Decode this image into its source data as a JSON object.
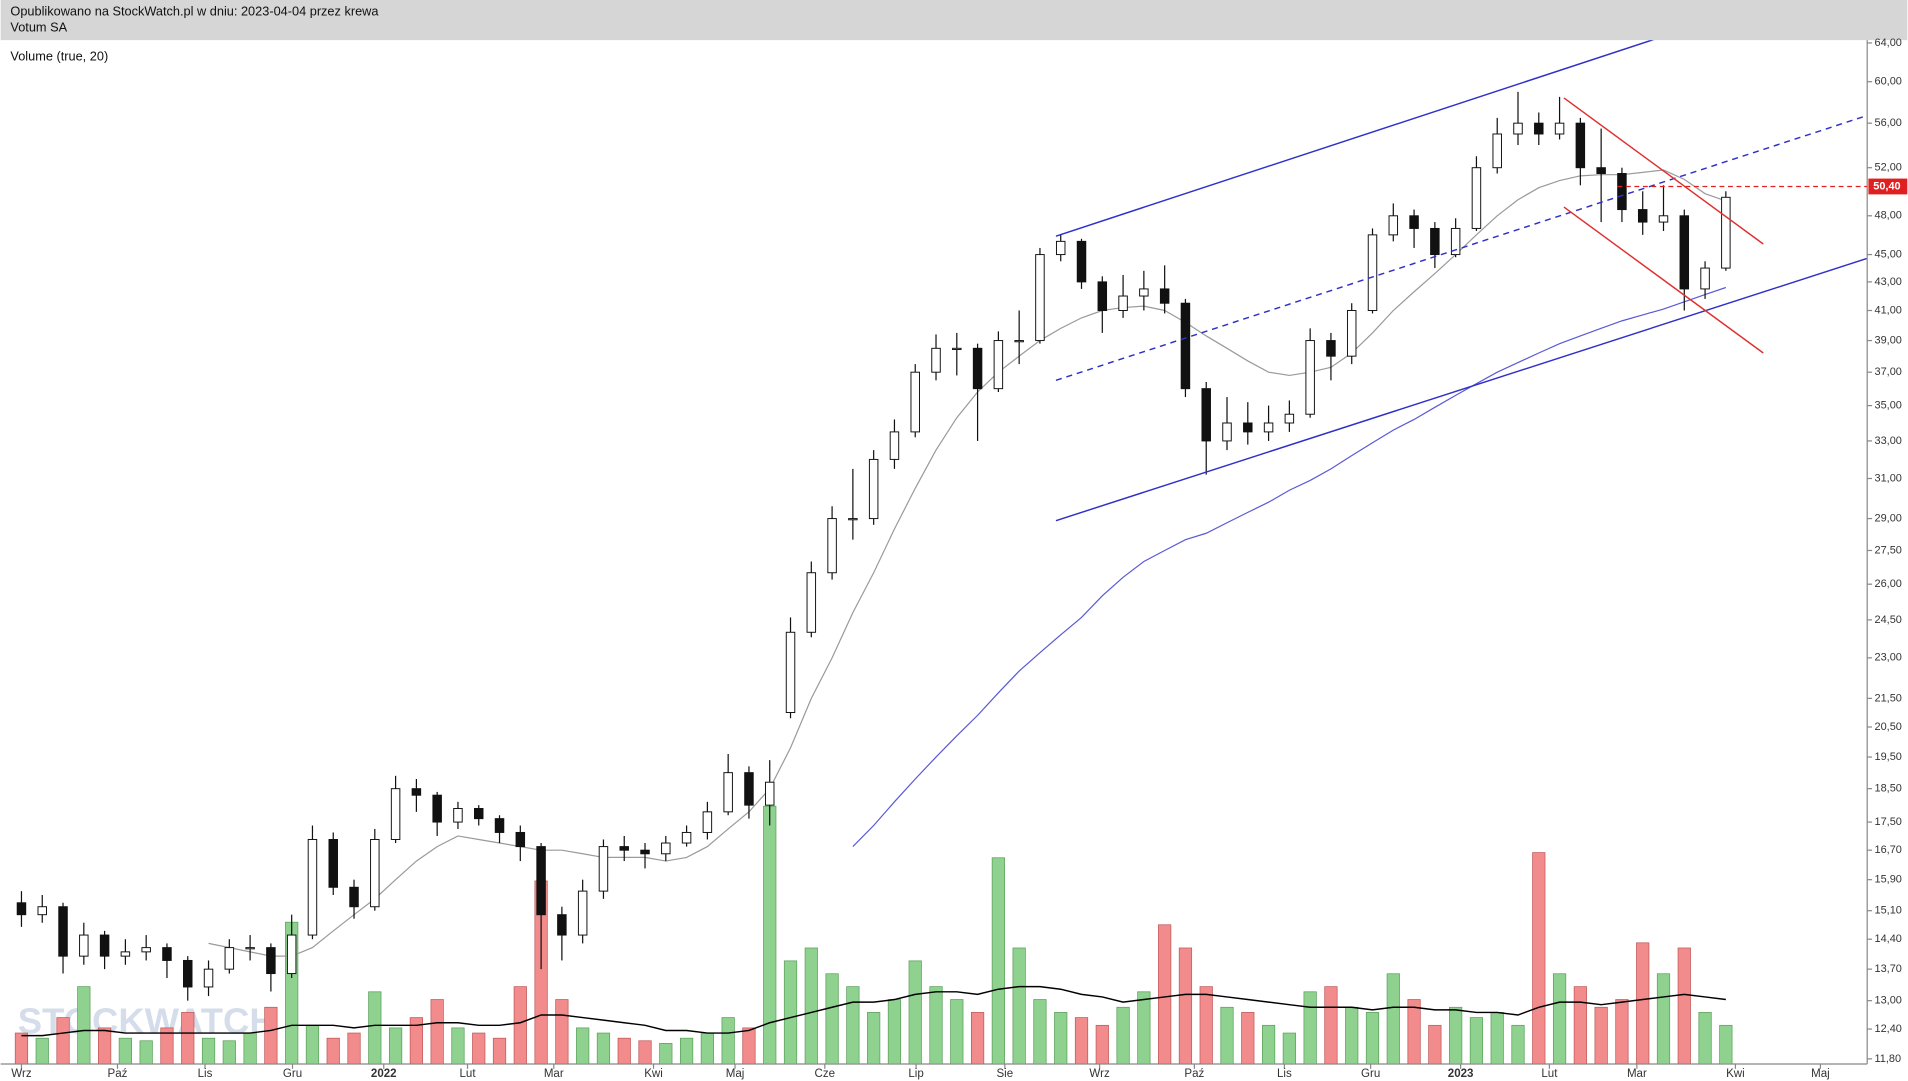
{
  "header": {
    "published": "Opublikowano na StockWatch.pl w dniu: 2023-04-04 przez krewa",
    "instrument": "Votum SA"
  },
  "chart_data": {
    "type": "candlestick",
    "volume_label": "Volume (true, 20)",
    "watermark": "STOCKWATCH",
    "x": [
      0,
      1,
      2,
      3,
      4,
      5,
      6,
      7,
      8,
      9,
      10,
      11,
      12,
      13,
      14,
      15,
      16,
      17,
      18,
      19,
      20,
      21,
      22,
      23,
      24,
      25,
      26,
      27,
      28,
      29,
      30,
      31,
      32,
      33,
      34,
      35,
      36,
      37,
      38,
      39,
      40,
      41,
      42,
      43,
      44,
      45,
      46,
      47,
      48,
      49,
      50,
      51,
      52,
      53,
      54,
      55,
      56,
      57,
      58,
      59,
      60,
      61,
      62,
      63,
      64,
      65,
      66,
      67,
      68,
      69,
      70,
      71,
      72,
      73,
      74,
      75,
      76,
      77,
      78,
      79,
      80,
      81,
      82
    ],
    "open": [
      15.3,
      15.0,
      15.2,
      14.0,
      14.5,
      14.0,
      14.1,
      14.2,
      13.9,
      13.3,
      13.7,
      14.2,
      14.2,
      13.6,
      14.5,
      17.0,
      15.7,
      15.2,
      17.0,
      18.5,
      18.3,
      17.5,
      17.9,
      17.6,
      17.2,
      16.8,
      15.0,
      14.5,
      15.6,
      16.8,
      16.7,
      16.6,
      16.9,
      17.2,
      17.8,
      19.0,
      18.0,
      21.0,
      24.0,
      26.5,
      29.0,
      29.0,
      32.0,
      33.5,
      37.0,
      38.5,
      38.5,
      36.0,
      39.0,
      39.0,
      45.0,
      46.0,
      43.0,
      41.0,
      42.0,
      42.5,
      41.5,
      36.0,
      33.0,
      34.0,
      33.5,
      34.0,
      34.5,
      39.0,
      38.0,
      41.0,
      46.5,
      48.0,
      47.0,
      45.0,
      47.0,
      52.0,
      55.0,
      56.0,
      55.0,
      56.0,
      52.0,
      51.5,
      48.5,
      47.5,
      48.0,
      42.5,
      44.0
    ],
    "high": [
      15.6,
      15.5,
      15.3,
      14.8,
      14.6,
      14.4,
      14.5,
      14.3,
      14.0,
      13.9,
      14.4,
      14.5,
      14.3,
      15.0,
      17.4,
      17.2,
      15.9,
      17.3,
      18.9,
      18.8,
      18.4,
      18.1,
      18.0,
      17.7,
      17.4,
      16.9,
      15.2,
      15.9,
      17.0,
      17.1,
      16.9,
      17.1,
      17.4,
      18.1,
      19.6,
      19.2,
      19.4,
      24.6,
      27.0,
      29.6,
      31.5,
      32.5,
      34.2,
      37.5,
      39.4,
      39.5,
      38.8,
      39.6,
      41.0,
      45.5,
      46.5,
      46.2,
      43.4,
      43.5,
      43.8,
      44.2,
      41.8,
      36.4,
      35.5,
      35.2,
      35.0,
      35.3,
      39.8,
      39.5,
      41.5,
      47.0,
      49.0,
      48.5,
      47.5,
      47.8,
      53.0,
      56.5,
      59.0,
      57.0,
      58.5,
      56.5,
      55.5,
      52.0,
      50.0,
      50.5,
      48.5,
      44.5,
      50.0
    ],
    "low": [
      14.7,
      14.8,
      13.6,
      13.8,
      13.7,
      13.8,
      13.9,
      13.5,
      13.0,
      13.1,
      13.6,
      13.9,
      13.2,
      13.5,
      14.4,
      15.5,
      14.9,
      15.1,
      16.9,
      17.8,
      17.1,
      17.3,
      17.4,
      16.9,
      16.4,
      13.7,
      13.9,
      14.3,
      15.4,
      16.4,
      16.2,
      16.4,
      16.8,
      17.0,
      17.7,
      17.6,
      17.4,
      20.8,
      23.8,
      26.2,
      28.0,
      28.7,
      31.5,
      33.2,
      36.5,
      36.8,
      33.0,
      35.8,
      37.5,
      38.8,
      44.5,
      42.5,
      39.5,
      40.5,
      41.0,
      40.8,
      35.5,
      31.2,
      32.5,
      32.8,
      33.0,
      33.5,
      34.3,
      36.5,
      37.5,
      40.8,
      46.0,
      45.5,
      44.0,
      44.8,
      46.8,
      51.5,
      54.0,
      54.0,
      54.5,
      50.5,
      47.5,
      47.5,
      46.5,
      46.8,
      41.0,
      41.8,
      43.8
    ],
    "close": [
      15.0,
      15.2,
      14.0,
      14.5,
      14.0,
      14.1,
      14.2,
      13.9,
      13.3,
      13.7,
      14.2,
      14.2,
      13.6,
      14.5,
      17.0,
      15.7,
      15.2,
      17.0,
      18.5,
      18.3,
      17.5,
      17.9,
      17.6,
      17.2,
      16.8,
      15.0,
      14.5,
      15.6,
      16.8,
      16.7,
      16.6,
      16.9,
      17.2,
      17.8,
      19.0,
      18.0,
      18.7,
      24.0,
      26.5,
      29.0,
      29.0,
      32.0,
      33.5,
      37.0,
      38.5,
      38.5,
      36.0,
      39.0,
      39.0,
      45.0,
      46.0,
      43.0,
      41.0,
      42.0,
      42.5,
      41.5,
      36.0,
      33.0,
      34.0,
      33.5,
      34.0,
      34.5,
      39.0,
      38.0,
      41.0,
      46.5,
      48.0,
      47.0,
      45.0,
      47.0,
      52.0,
      55.0,
      56.0,
      55.0,
      56.0,
      52.0,
      51.5,
      48.5,
      47.5,
      48.0,
      42.5,
      44.0,
      49.5
    ],
    "moving_averages": [
      {
        "color": "#9a9a9a",
        "values": [
          null,
          null,
          null,
          null,
          null,
          null,
          null,
          null,
          null,
          14.3,
          14.2,
          14.1,
          14.0,
          14.0,
          14.2,
          14.6,
          15.0,
          15.4,
          15.9,
          16.4,
          16.8,
          17.1,
          17.0,
          16.9,
          16.8,
          16.7,
          16.7,
          16.6,
          16.5,
          16.5,
          16.5,
          16.4,
          16.5,
          16.8,
          17.3,
          17.8,
          18.5,
          19.8,
          21.5,
          23.0,
          24.8,
          26.5,
          28.5,
          30.5,
          32.5,
          34.3,
          35.8,
          37.0,
          38.0,
          39.0,
          39.8,
          40.5,
          41.0,
          41.2,
          41.3,
          41.0,
          40.2,
          39.3,
          38.5,
          37.7,
          37.0,
          36.8,
          37.0,
          37.3,
          38.2,
          39.5,
          41.0,
          42.3,
          43.6,
          45.0,
          46.5,
          48.0,
          49.3,
          50.3,
          50.9,
          51.3,
          51.4,
          51.4,
          51.6,
          51.8,
          51.0,
          49.8,
          49.2
        ]
      },
      {
        "color": "#5a5ad6",
        "values": [
          null,
          null,
          null,
          null,
          null,
          null,
          null,
          null,
          null,
          null,
          null,
          null,
          null,
          null,
          null,
          null,
          null,
          null,
          null,
          null,
          null,
          null,
          null,
          null,
          null,
          null,
          null,
          null,
          null,
          null,
          null,
          null,
          null,
          null,
          null,
          null,
          null,
          null,
          null,
          null,
          16.8,
          17.4,
          18.1,
          18.8,
          19.5,
          20.2,
          20.9,
          21.7,
          22.5,
          23.2,
          23.9,
          24.6,
          25.5,
          26.3,
          27.0,
          27.5,
          28.0,
          28.3,
          28.8,
          29.3,
          29.8,
          30.4,
          30.9,
          31.5,
          32.2,
          32.9,
          33.6,
          34.2,
          34.9,
          35.6,
          36.3,
          37.0,
          37.6,
          38.2,
          38.8,
          39.3,
          39.8,
          40.3,
          40.7,
          41.1,
          41.6,
          42.1,
          42.6
        ]
      }
    ],
    "volume": {
      "up_color": "#8fd18f",
      "down_color": "#f28b8b",
      "vlim": [
        0,
        100
      ],
      "values": [
        12,
        10,
        18,
        30,
        14,
        10,
        9,
        14,
        20,
        10,
        9,
        12,
        22,
        55,
        15,
        10,
        12,
        28,
        14,
        18,
        25,
        14,
        12,
        10,
        30,
        71,
        25,
        14,
        12,
        10,
        9,
        8,
        10,
        12,
        18,
        14,
        100,
        40,
        45,
        35,
        30,
        20,
        25,
        40,
        30,
        25,
        20,
        80,
        45,
        25,
        20,
        18,
        15,
        22,
        28,
        54,
        45,
        30,
        22,
        20,
        15,
        12,
        28,
        30,
        22,
        20,
        35,
        25,
        15,
        22,
        18,
        20,
        15,
        82,
        35,
        30,
        22,
        25,
        47,
        35,
        45,
        20,
        15
      ],
      "ma": {
        "color": "#000000",
        "values": [
          11,
          11,
          12,
          13,
          13,
          12,
          12,
          12,
          12,
          12,
          12,
          12,
          13,
          15,
          15,
          15,
          14,
          15,
          15,
          15,
          16,
          16,
          15,
          15,
          16,
          19,
          19,
          18,
          17,
          16,
          15,
          13,
          13,
          12,
          12,
          13,
          16,
          18,
          20,
          22,
          24,
          24,
          25,
          27,
          28,
          28,
          27,
          29,
          30,
          30,
          29,
          27,
          26,
          24,
          25,
          26,
          27,
          27,
          26,
          25,
          24,
          23,
          22,
          22,
          22,
          21,
          22,
          22,
          21,
          21,
          20,
          20,
          19,
          22,
          24,
          24,
          23,
          24,
          25,
          26,
          27,
          26,
          25
        ]
      }
    },
    "log": true,
    "ylim": [
      11.7,
      64.3
    ],
    "yticks": [
      {
        "value": 64,
        "label": "64,00"
      },
      {
        "value": 60,
        "label": "60,00"
      },
      {
        "value": 56,
        "label": "56,00"
      },
      {
        "value": 52,
        "label": "52,00"
      },
      {
        "value": 48,
        "label": "48,00"
      },
      {
        "value": 45,
        "label": "45,00"
      },
      {
        "value": 43,
        "label": "43,00"
      },
      {
        "value": 41,
        "label": "41,00"
      },
      {
        "value": 39,
        "label": "39,00"
      },
      {
        "value": 37,
        "label": "37,00"
      },
      {
        "value": 35,
        "label": "35,00"
      },
      {
        "value": 33,
        "label": "33,00"
      },
      {
        "value": 31,
        "label": "31,00"
      },
      {
        "value": 29,
        "label": "29,00"
      },
      {
        "value": 27.5,
        "label": "27,50"
      },
      {
        "value": 26,
        "label": "26,00"
      },
      {
        "value": 24.5,
        "label": "24,50"
      },
      {
        "value": 23,
        "label": "23,00"
      },
      {
        "value": 21.5,
        "label": "21,50"
      },
      {
        "value": 20.5,
        "label": "20,50"
      },
      {
        "value": 19.5,
        "label": "19,50"
      },
      {
        "value": 18.5,
        "label": "18,50"
      },
      {
        "value": 17.5,
        "label": "17,50"
      },
      {
        "value": 16.7,
        "label": "16,70"
      },
      {
        "value": 15.9,
        "label": "15,90"
      },
      {
        "value": 15.1,
        "label": "15,10"
      },
      {
        "value": 14.4,
        "label": "14,40"
      },
      {
        "value": 13.7,
        "label": "13,70"
      },
      {
        "value": 13,
        "label": "13,00"
      },
      {
        "value": 12.4,
        "label": "12,40"
      },
      {
        "value": 11.8,
        "label": "11,80"
      }
    ],
    "xlim": [
      -1,
      88.8
    ],
    "xticks": [
      {
        "value": 0,
        "label": "Wrz"
      },
      {
        "value": 4.62,
        "label": "Paź"
      },
      {
        "value": 8.83,
        "label": "Lis"
      },
      {
        "value": 13.04,
        "label": "Gru"
      },
      {
        "value": 17.43,
        "label": "2022"
      },
      {
        "value": 21.46,
        "label": "Lut"
      },
      {
        "value": 25.61,
        "label": "Mar"
      },
      {
        "value": 30.41,
        "label": "Kwi"
      },
      {
        "value": 34.33,
        "label": "Maj"
      },
      {
        "value": 38.65,
        "label": "Cze"
      },
      {
        "value": 43.04,
        "label": "Lip"
      },
      {
        "value": 47.31,
        "label": "Sie"
      },
      {
        "value": 51.87,
        "label": "Wrz"
      },
      {
        "value": 56.43,
        "label": "Paź"
      },
      {
        "value": 60.76,
        "label": "Lis"
      },
      {
        "value": 64.91,
        "label": "Gru"
      },
      {
        "value": 69.24,
        "label": "2023"
      },
      {
        "value": 73.51,
        "label": "Lut"
      },
      {
        "value": 77.72,
        "label": "Mar"
      },
      {
        "value": 82.46,
        "label": "Kwi"
      },
      {
        "value": 86.55,
        "label": "Maj"
      }
    ],
    "price_line": {
      "value": 50.4,
      "label": "50,40",
      "color": "#e02020",
      "x0": 76.78
    },
    "trendlines": [
      {
        "color": "#3030c8",
        "dashed": false,
        "x": [
          49.77,
          78.71
        ],
        "y": [
          46.4,
          64.5
        ]
      },
      {
        "color": "#3030c8",
        "dashed": false,
        "x": [
          49.77,
          88.77
        ],
        "y": [
          28.9,
          44.7
        ]
      },
      {
        "color": "#3030c8",
        "dashed": true,
        "x": [
          49.77,
          88.77
        ],
        "y": [
          36.5,
          56.7
        ]
      },
      {
        "color": "#e03030",
        "dashed": false,
        "x": [
          74.21,
          83.8
        ],
        "y": [
          58.4,
          45.8
        ]
      },
      {
        "color": "#e03030",
        "dashed": false,
        "x": [
          74.21,
          83.8
        ],
        "y": [
          48.7,
          38.2
        ]
      }
    ]
  }
}
